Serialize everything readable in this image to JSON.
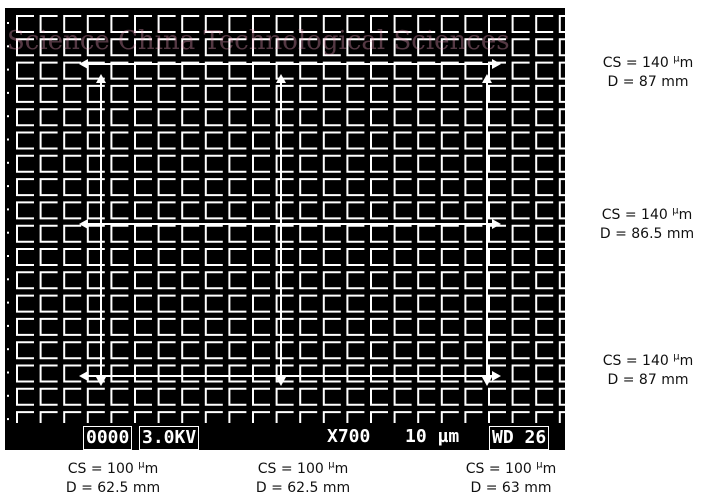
{
  "image": {
    "description": "SEM micrograph of a square-cell microstructure array with measurement arrows",
    "colors": {
      "background": "#000000",
      "grid": "#ffffff",
      "annotation_text": "#111111"
    }
  },
  "scale_bar": {
    "code": "0000",
    "voltage": "3.0KV",
    "magnification": "X700",
    "scale": "10 µm",
    "working_distance": "WD 26"
  },
  "watermark_text": "Science China Technological Sciences",
  "measurements_right": [
    {
      "cs_prefix": "CS = 140 ",
      "cs_unit_sup": "µ",
      "cs_unit": "m",
      "d": "D = 87 mm"
    },
    {
      "cs_prefix": "CS = 140 ",
      "cs_unit_sup": "µ",
      "cs_unit": "m",
      "d": "D = 86.5 mm"
    },
    {
      "cs_prefix": "CS = 140 ",
      "cs_unit_sup": "µ",
      "cs_unit": "m",
      "d": "D = 87 mm"
    }
  ],
  "measurements_bottom": [
    {
      "cs_prefix": "CS = 100 ",
      "cs_unit_sup": "µ",
      "cs_unit": "m",
      "d": "D = 62.5 mm"
    },
    {
      "cs_prefix": "CS = 100 ",
      "cs_unit_sup": "µ",
      "cs_unit": "m",
      "d": "D = 62.5 mm"
    },
    {
      "cs_prefix": "CS = 100 ",
      "cs_unit_sup": "µ",
      "cs_unit": "m",
      "d": "D = 63 mm"
    }
  ]
}
